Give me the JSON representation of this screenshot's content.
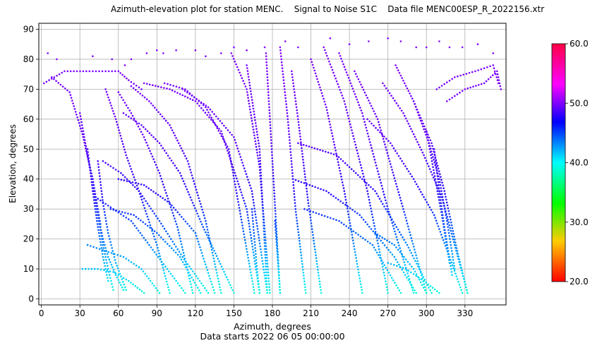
{
  "chart_data": {
    "type": "scatter",
    "title": "Azimuth-elevation plot for station MENC.    Signal to Noise S1C    Data file MENC00ESP_R_2022156.xtr",
    "xlabel": "Azimuth, degrees",
    "ylabel": "Elevation, degrees",
    "subtitle": "Data starts 2022 06 05 00:00:00",
    "xlim": [
      -2,
      362
    ],
    "ylim": [
      -2,
      92
    ],
    "xticks": [
      0,
      30,
      60,
      90,
      120,
      150,
      180,
      210,
      240,
      270,
      300,
      330
    ],
    "yticks": [
      0,
      10,
      20,
      30,
      40,
      50,
      60,
      70,
      80,
      90
    ],
    "grid": true,
    "colorbar": {
      "min": 20.0,
      "max": 60.0,
      "ticks": [
        "20.0",
        "30.0",
        "40.0",
        "50.0",
        "60.0"
      ],
      "colormap": "gist_rainbow",
      "colors": [
        "#ff0000",
        "#ffcc00",
        "#00ff00",
        "#00ffff",
        "#0000ff",
        "#ff00ff",
        "#ff0044"
      ]
    },
    "point_color_rule": "snr rises with elevation: ~42 dB-Hz near 0 deg, ~47 at 20 deg, ~52 above 40 deg",
    "tracks": [
      {
        "az": [
          2,
          18,
          35,
          50,
          60,
          68,
          78
        ],
        "el": [
          72,
          76,
          76,
          76,
          76,
          73,
          70
        ]
      },
      {
        "az": [
          8,
          22,
          32,
          40,
          46
        ],
        "el": [
          74,
          69,
          55,
          40,
          25
        ]
      },
      {
        "az": [
          30,
          36,
          40,
          44,
          48,
          52,
          58,
          64
        ],
        "el": [
          62,
          48,
          38,
          28,
          20,
          14,
          8,
          3
        ]
      },
      {
        "az": [
          36,
          40,
          44,
          48,
          52
        ],
        "el": [
          50,
          36,
          24,
          14,
          6
        ]
      },
      {
        "az": [
          40,
          44,
          48,
          52,
          56
        ],
        "el": [
          40,
          28,
          18,
          10,
          3
        ]
      },
      {
        "az": [
          44,
          48,
          52,
          58,
          66
        ],
        "el": [
          46,
          32,
          22,
          12,
          3
        ]
      },
      {
        "az": [
          50,
          58,
          66,
          76,
          90,
          100
        ],
        "el": [
          70,
          60,
          48,
          36,
          18,
          2
        ]
      },
      {
        "az": [
          60,
          70,
          80,
          92,
          106,
          118
        ],
        "el": [
          69,
          62,
          54,
          42,
          24,
          2
        ]
      },
      {
        "az": [
          70,
          84,
          100,
          114,
          128,
          140
        ],
        "el": [
          71,
          66,
          58,
          46,
          26,
          2
        ]
      },
      {
        "az": [
          64,
          78,
          92,
          108,
          126,
          150
        ],
        "el": [
          62,
          58,
          52,
          42,
          24,
          2
        ]
      },
      {
        "az": [
          48,
          62,
          76,
          92,
          110,
          130
        ],
        "el": [
          46,
          42,
          36,
          26,
          14,
          2
        ]
      },
      {
        "az": [
          42,
          56,
          70,
          84,
          98,
          112
        ],
        "el": [
          34,
          30,
          26,
          18,
          10,
          2
        ]
      },
      {
        "az": [
          36,
          50,
          64,
          78,
          92
        ],
        "el": [
          18,
          16,
          14,
          10,
          2
        ]
      },
      {
        "az": [
          32,
          44,
          56,
          68,
          80
        ],
        "el": [
          10,
          10,
          9,
          6,
          2
        ]
      },
      {
        "az": [
          80,
          100,
          120,
          140,
          160,
          170
        ],
        "el": [
          72,
          70,
          66,
          56,
          30,
          2
        ]
      },
      {
        "az": [
          96,
          112,
          128,
          146,
          166
        ],
        "el": [
          72,
          70,
          64,
          50,
          2
        ]
      },
      {
        "az": [
          110,
          130,
          150,
          164,
          176
        ],
        "el": [
          70,
          64,
          54,
          36,
          2
        ]
      },
      {
        "az": [
          60,
          80,
          100,
          120,
          135
        ],
        "el": [
          40,
          38,
          32,
          22,
          2
        ]
      },
      {
        "az": [
          54,
          72,
          90,
          108,
          124
        ],
        "el": [
          30,
          28,
          22,
          14,
          2
        ]
      },
      {
        "az": [
          148,
          160,
          170,
          178
        ],
        "el": [
          82,
          70,
          44,
          2
        ]
      },
      {
        "az": [
          160,
          170,
          176
        ],
        "el": [
          78,
          50,
          2
        ]
      },
      {
        "az": [
          175,
          180,
          186
        ],
        "el": [
          82,
          46,
          2
        ]
      },
      {
        "az": [
          186,
          192,
          198,
          206
        ],
        "el": [
          84,
          60,
          30,
          2
        ]
      },
      {
        "az": [
          195,
          200,
          208,
          218
        ],
        "el": [
          76,
          60,
          32,
          2
        ]
      },
      {
        "az": [
          210,
          222,
          236,
          250
        ],
        "el": [
          80,
          64,
          36,
          2
        ]
      },
      {
        "az": [
          220,
          236,
          254,
          270
        ],
        "el": [
          84,
          66,
          36,
          2
        ]
      },
      {
        "az": [
          232,
          250,
          270,
          290
        ],
        "el": [
          82,
          62,
          30,
          2
        ]
      },
      {
        "az": [
          244,
          262,
          282,
          300
        ],
        "el": [
          76,
          60,
          30,
          2
        ]
      },
      {
        "az": [
          200,
          230,
          260,
          285,
          304
        ],
        "el": [
          52,
          48,
          36,
          18,
          2
        ]
      },
      {
        "az": [
          196,
          222,
          248,
          275,
          292
        ],
        "el": [
          40,
          36,
          28,
          14,
          2
        ]
      },
      {
        "az": [
          205,
          232,
          258,
          280
        ],
        "el": [
          30,
          26,
          18,
          2
        ]
      },
      {
        "az": [
          254,
          272,
          290,
          306,
          318,
          328
        ],
        "el": [
          60,
          52,
          40,
          28,
          14,
          2
        ]
      },
      {
        "az": [
          266,
          282,
          298,
          312,
          322,
          332
        ],
        "el": [
          72,
          62,
          48,
          34,
          18,
          2
        ]
      },
      {
        "az": [
          276,
          290,
          304,
          314,
          324,
          332
        ],
        "el": [
          78,
          66,
          52,
          36,
          16,
          2
        ]
      },
      {
        "az": [
          290,
          302,
          310,
          316,
          322
        ],
        "el": [
          66,
          52,
          40,
          26,
          10
        ]
      },
      {
        "az": [
          300,
          306,
          312,
          318
        ],
        "el": [
          56,
          42,
          28,
          12
        ]
      },
      {
        "az": [
          306,
          310,
          314,
          320
        ],
        "el": [
          50,
          36,
          24,
          8
        ]
      },
      {
        "az": [
          316,
          330,
          345,
          355,
          358
        ],
        "el": [
          66,
          70,
          72,
          76,
          70
        ]
      },
      {
        "az": [
          308,
          322,
          338,
          352,
          356
        ],
        "el": [
          70,
          74,
          76,
          78,
          72
        ]
      },
      {
        "az": [
          260,
          275,
          290,
          300
        ],
        "el": [
          22,
          18,
          10,
          2
        ]
      },
      {
        "az": [
          270,
          284,
          298,
          310
        ],
        "el": [
          12,
          10,
          6,
          2
        ]
      },
      {
        "az": [
          164,
          166,
          168,
          170
        ],
        "el": [
          30,
          20,
          10,
          2
        ]
      },
      {
        "az": [
          182,
          184,
          186
        ],
        "el": [
          26,
          14,
          2
        ]
      }
    ],
    "scattered_points": [
      {
        "az": 5,
        "el": 82
      },
      {
        "az": 12,
        "el": 80
      },
      {
        "az": 40,
        "el": 81
      },
      {
        "az": 55,
        "el": 80
      },
      {
        "az": 65,
        "el": 78
      },
      {
        "az": 70,
        "el": 80
      },
      {
        "az": 82,
        "el": 82
      },
      {
        "az": 90,
        "el": 83
      },
      {
        "az": 95,
        "el": 82
      },
      {
        "az": 105,
        "el": 83
      },
      {
        "az": 120,
        "el": 83
      },
      {
        "az": 128,
        "el": 81
      },
      {
        "az": 140,
        "el": 82
      },
      {
        "az": 150,
        "el": 84
      },
      {
        "az": 160,
        "el": 83
      },
      {
        "az": 174,
        "el": 84
      },
      {
        "az": 190,
        "el": 86
      },
      {
        "az": 200,
        "el": 84
      },
      {
        "az": 225,
        "el": 87
      },
      {
        "az": 240,
        "el": 85
      },
      {
        "az": 255,
        "el": 86
      },
      {
        "az": 270,
        "el": 87
      },
      {
        "az": 280,
        "el": 86
      },
      {
        "az": 292,
        "el": 84
      },
      {
        "az": 300,
        "el": 84
      },
      {
        "az": 310,
        "el": 86
      },
      {
        "az": 318,
        "el": 84
      },
      {
        "az": 328,
        "el": 84
      },
      {
        "az": 340,
        "el": 85
      },
      {
        "az": 352,
        "el": 82
      }
    ]
  }
}
